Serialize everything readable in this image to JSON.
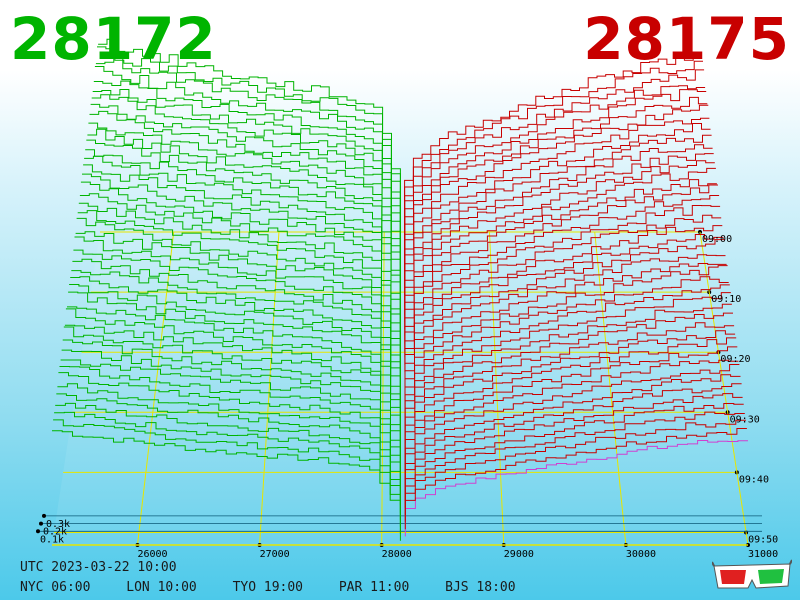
{
  "header": {
    "bid_price": "28172",
    "ask_price": "28175",
    "bid_color": "#00b400",
    "ask_color": "#c80000"
  },
  "footer": {
    "utc": "UTC 2023-03-22 10:00",
    "timezones": [
      "NYC 06:00",
      "LON 10:00",
      "TYO 19:00",
      "PAR 11:00",
      "BJS 18:00"
    ]
  },
  "chart_data": {
    "type": "area",
    "style": "3d order-book depth waterfall",
    "x": {
      "label": "",
      "ticks": [
        26000,
        27000,
        28000,
        29000,
        30000,
        31000
      ],
      "tick_labels": [
        "26000",
        "27000",
        "28000",
        "29000",
        "30000",
        "31000"
      ],
      "range": [
        25300,
        31000
      ]
    },
    "y": {
      "label": "",
      "ticks": [
        100,
        200,
        300
      ],
      "tick_labels": [
        "0.1k",
        "0.2k",
        "0.3k"
      ],
      "range": [
        0,
        1200
      ]
    },
    "time": {
      "ticks": [
        "09:00",
        "09:10",
        "09:20",
        "09:30",
        "09:40",
        "09:50"
      ]
    },
    "mid_price": 28173.5,
    "bid_side": {
      "name": "",
      "color": "#00b400",
      "cumulative_depth_profile": [
        {
          "price": 25300,
          "depth": 1080
        },
        {
          "price": 25700,
          "depth": 1010
        },
        {
          "price": 26100,
          "depth": 960
        },
        {
          "price": 26500,
          "depth": 900
        },
        {
          "price": 27000,
          "depth": 850
        },
        {
          "price": 27500,
          "depth": 800
        },
        {
          "price": 27900,
          "depth": 720
        },
        {
          "price": 28050,
          "depth": 500
        },
        {
          "price": 28150,
          "depth": 40
        }
      ]
    },
    "ask_side": {
      "name": "",
      "color": "#c80000",
      "latest_color": "#d040d0",
      "cumulative_depth_profile": [
        {
          "price": 28180,
          "depth": 40
        },
        {
          "price": 28300,
          "depth": 420
        },
        {
          "price": 28600,
          "depth": 560
        },
        {
          "price": 29000,
          "depth": 650
        },
        {
          "price": 29500,
          "depth": 760
        },
        {
          "price": 30000,
          "depth": 860
        },
        {
          "price": 30500,
          "depth": 950
        },
        {
          "price": 31000,
          "depth": 1000
        }
      ]
    },
    "grid": true,
    "legend": "none"
  }
}
